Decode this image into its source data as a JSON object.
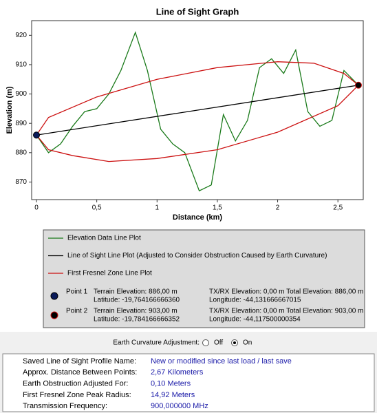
{
  "chart_data": {
    "type": "line",
    "title": "Line of Sight Graph",
    "x_label": "Distance (km)",
    "y_label": "Elevation (m)",
    "xlim": [
      -0.04,
      2.71
    ],
    "ylim": [
      864,
      925
    ],
    "xticks": [
      0,
      {
        "value": 0.5,
        "label": "0,5"
      },
      1,
      {
        "value": 1.5,
        "label": "1,5"
      },
      2,
      {
        "value": 2.5,
        "label": "2,5"
      }
    ],
    "yticks": [
      870,
      880,
      890,
      900,
      910,
      920
    ],
    "series": [
      {
        "name": "Elevation Data Line Plot",
        "color": "#1a7a1a",
        "x": [
          0,
          0.1,
          0.2,
          0.3,
          0.4,
          0.5,
          0.6,
          0.7,
          0.82,
          0.92,
          1.03,
          1.13,
          1.23,
          1.35,
          1.45,
          1.55,
          1.65,
          1.75,
          1.85,
          1.95,
          2.05,
          2.15,
          2.25,
          2.35,
          2.45,
          2.55,
          2.67
        ],
        "values": [
          886,
          880,
          883,
          889,
          894,
          895,
          900,
          908,
          921,
          908,
          888,
          883,
          880,
          867,
          869,
          893,
          884,
          891,
          909,
          912,
          907,
          915,
          894,
          889,
          891,
          908,
          903
        ]
      },
      {
        "name": "Line of Sight Line Plot (Adjusted to Consider Obstruction Caused by Earth Curvature)",
        "color": "#000000",
        "x": [
          0,
          2.67
        ],
        "values": [
          886,
          903
        ]
      },
      {
        "name": "First Fresnel Zone Line Plot",
        "color": "#cc1111",
        "x": [
          0,
          0.1,
          0.5,
          1.0,
          1.5,
          2.0,
          2.3,
          2.55,
          2.67,
          2.5,
          2.0,
          1.5,
          1.0,
          0.6,
          0.3,
          0.1,
          0
        ],
        "values": [
          886,
          892,
          899,
          905,
          909,
          911,
          910.5,
          907,
          903,
          896,
          887,
          881,
          878,
          877,
          879,
          881,
          886
        ]
      }
    ]
  },
  "points": [
    {
      "label": "Point 1",
      "color": "#0a1a5a",
      "terrain": "Terrain Elevation: 886,00 m",
      "latitude": "Latitude: -19,764166666360",
      "txrx": "TX/RX Elevation: 0,00 m Total Elevation: 886,00 m",
      "longitude": "Longitude: -44,131666667015"
    },
    {
      "label": "Point 2",
      "color": "#000000",
      "terrain": "Terrain Elevation: 903,00 m",
      "latitude": "Latitude: -19,784166666352",
      "txrx": "TX/RX Elevation: 0,00 m Total Elevation: 903,00 m",
      "longitude": "Longitude: -44,117500000354"
    }
  ],
  "curvature": {
    "label": "Earth Curvature Adjustment:",
    "options": [
      "Off",
      "On"
    ],
    "selected": 1
  },
  "info": [
    [
      "Saved Line of Sight Profile Name:",
      "New or modified since last load / last save"
    ],
    [
      "Approx. Distance Between Points:",
      "2,67 Kilometers"
    ],
    [
      "Earth Obstruction Adjusted For:",
      "0,10 Meters"
    ],
    [
      "First Fresnel Zone Peak Radius:",
      "14,92 Meters"
    ],
    [
      "Transmission Frequency:",
      "900,000000 MHz"
    ]
  ]
}
